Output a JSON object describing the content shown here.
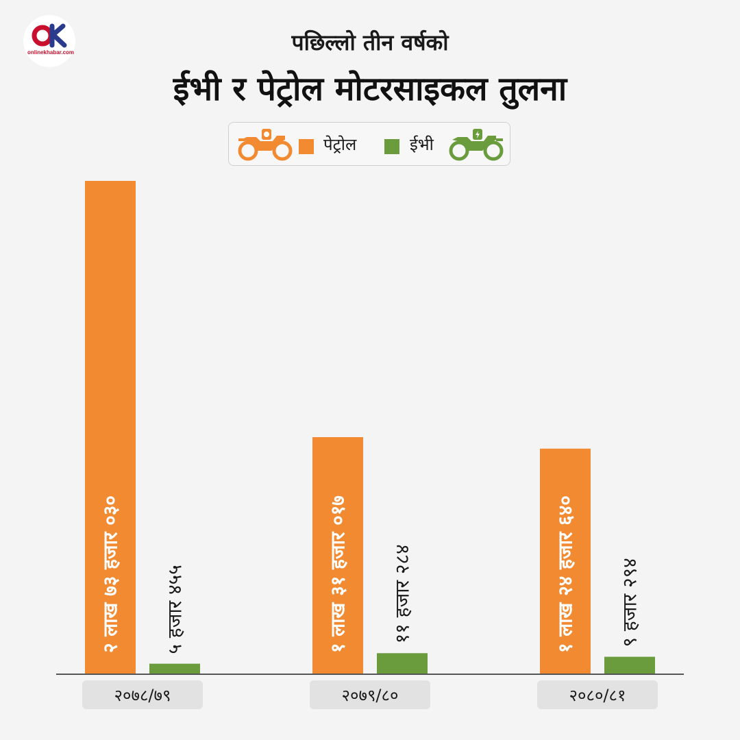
{
  "logo": {
    "text": "onlinekhabar.com"
  },
  "subtitle": "पछिल्लो तीन वर्षको",
  "title": "ईभी र पेट्रोल मोटरसाइकल तुलना",
  "legend": {
    "petrol": "पेट्रोल",
    "ev": "ईभी"
  },
  "colors": {
    "petrol": "#f28a32",
    "ev": "#6a9b3d",
    "category_box": "#e2e2e2",
    "axis": "#555555"
  },
  "chart_data": {
    "type": "bar",
    "title": "ईभी र पेट्रोल मोटरसाइकल तुलना",
    "subtitle": "पछिल्लो तीन वर्षको",
    "categories": [
      "२०७८/७९",
      "२०७९/८०",
      "२०८०/८१"
    ],
    "series": [
      {
        "name": "पेट्रोल",
        "color": "#f28a32",
        "values": [
          273030,
          131017,
          124640
        ],
        "labels": [
          "२ लाख ७३ हजार ०३०",
          "१ लाख ३१ हजार ०१७",
          "१ लाख २४ हजार ६४०"
        ]
      },
      {
        "name": "ईभी",
        "color": "#6a9b3d",
        "values": [
          5455,
          11284,
          9294
        ],
        "labels": [
          "५ हजार ४५५",
          "११ हजार २८४",
          "९ हजार २९४"
        ]
      }
    ],
    "ylim": [
      0,
      273030
    ],
    "grid": false,
    "legend_position": "top-center",
    "data_label_orientation": "vertical"
  }
}
